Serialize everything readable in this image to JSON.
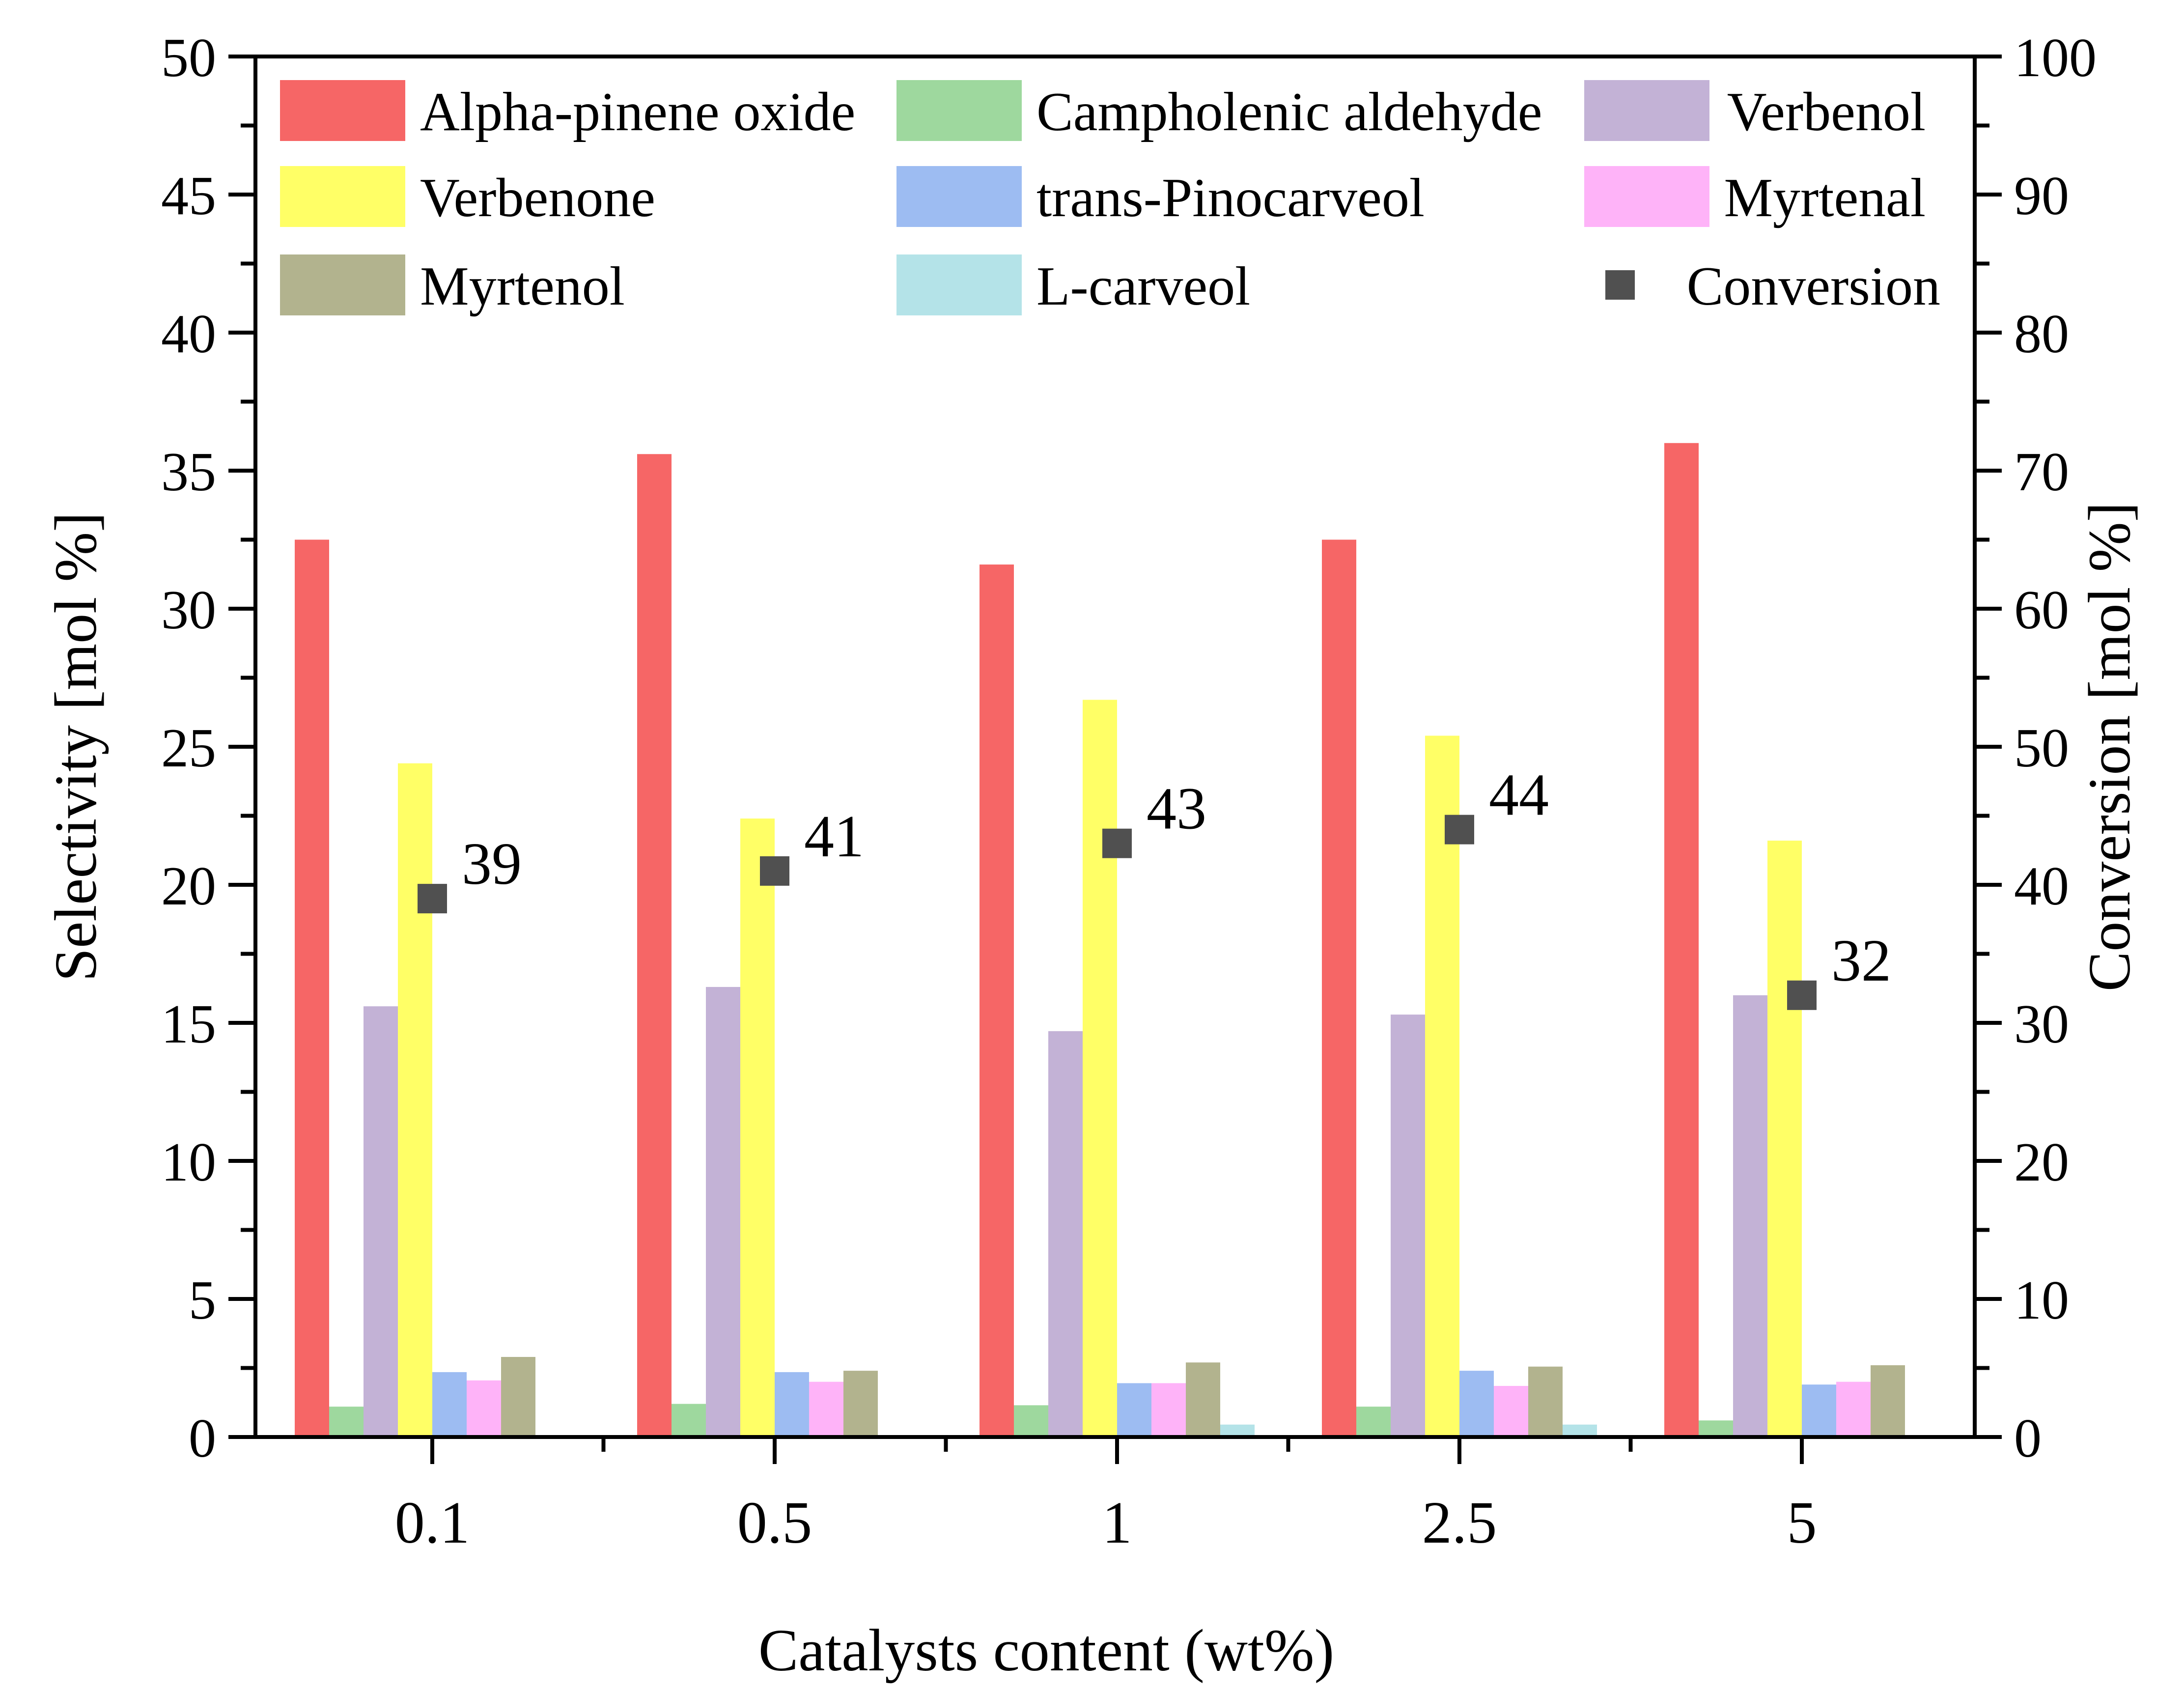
{
  "chart_data": {
    "type": "bar",
    "xlabel": "Catalysts content (wt%)",
    "ylabel": "Selectivity [mol %]",
    "y2label": "Conversion [mol %]",
    "ylim": [
      0,
      50
    ],
    "y2lim": [
      0,
      100
    ],
    "yticks": [
      "0",
      "5",
      "10",
      "15",
      "20",
      "25",
      "30",
      "35",
      "40",
      "45",
      "50"
    ],
    "y2ticks": [
      "0",
      "10",
      "20",
      "30",
      "40",
      "50",
      "60",
      "70",
      "80",
      "90",
      "100"
    ],
    "categories": [
      "0.1",
      "0.5",
      "1",
      "2.5",
      "5"
    ],
    "series": [
      {
        "name": "Alpha-pinene oxide",
        "color": "#F66666",
        "values": [
          32.5,
          35.6,
          31.6,
          32.5,
          36.0
        ]
      },
      {
        "name": "Campholenic aldehyde",
        "color": "#9ED89E",
        "values": [
          1.1,
          1.2,
          1.15,
          1.1,
          0.6
        ]
      },
      {
        "name": "Verbenol",
        "color": "#C3B2D6",
        "values": [
          15.6,
          16.3,
          14.7,
          15.3,
          16.0
        ]
      },
      {
        "name": "Verbenone",
        "color": "#FFFF66",
        "values": [
          24.4,
          22.4,
          26.7,
          25.4,
          21.6
        ]
      },
      {
        "name": "trans-Pinocarveol",
        "color": "#9DBCF2",
        "values": [
          2.35,
          2.35,
          1.95,
          2.4,
          1.9
        ]
      },
      {
        "name": "Myrtenal",
        "color": "#FEB3F8",
        "values": [
          2.05,
          2.0,
          1.95,
          1.85,
          2.0
        ]
      },
      {
        "name": "Myrtenol",
        "color": "#B2B38E",
        "values": [
          2.9,
          2.4,
          2.7,
          2.55,
          2.6
        ]
      },
      {
        "name": "L-carveol",
        "color": "#B4E3E8",
        "values": [
          0.0,
          0.0,
          0.45,
          0.45,
          0.0
        ]
      }
    ],
    "conversion": {
      "name": "Conversion",
      "color": "#505050",
      "values": [
        39,
        41,
        43,
        44,
        32
      ],
      "labels": [
        "39",
        "41",
        "43",
        "44",
        "32"
      ]
    }
  }
}
